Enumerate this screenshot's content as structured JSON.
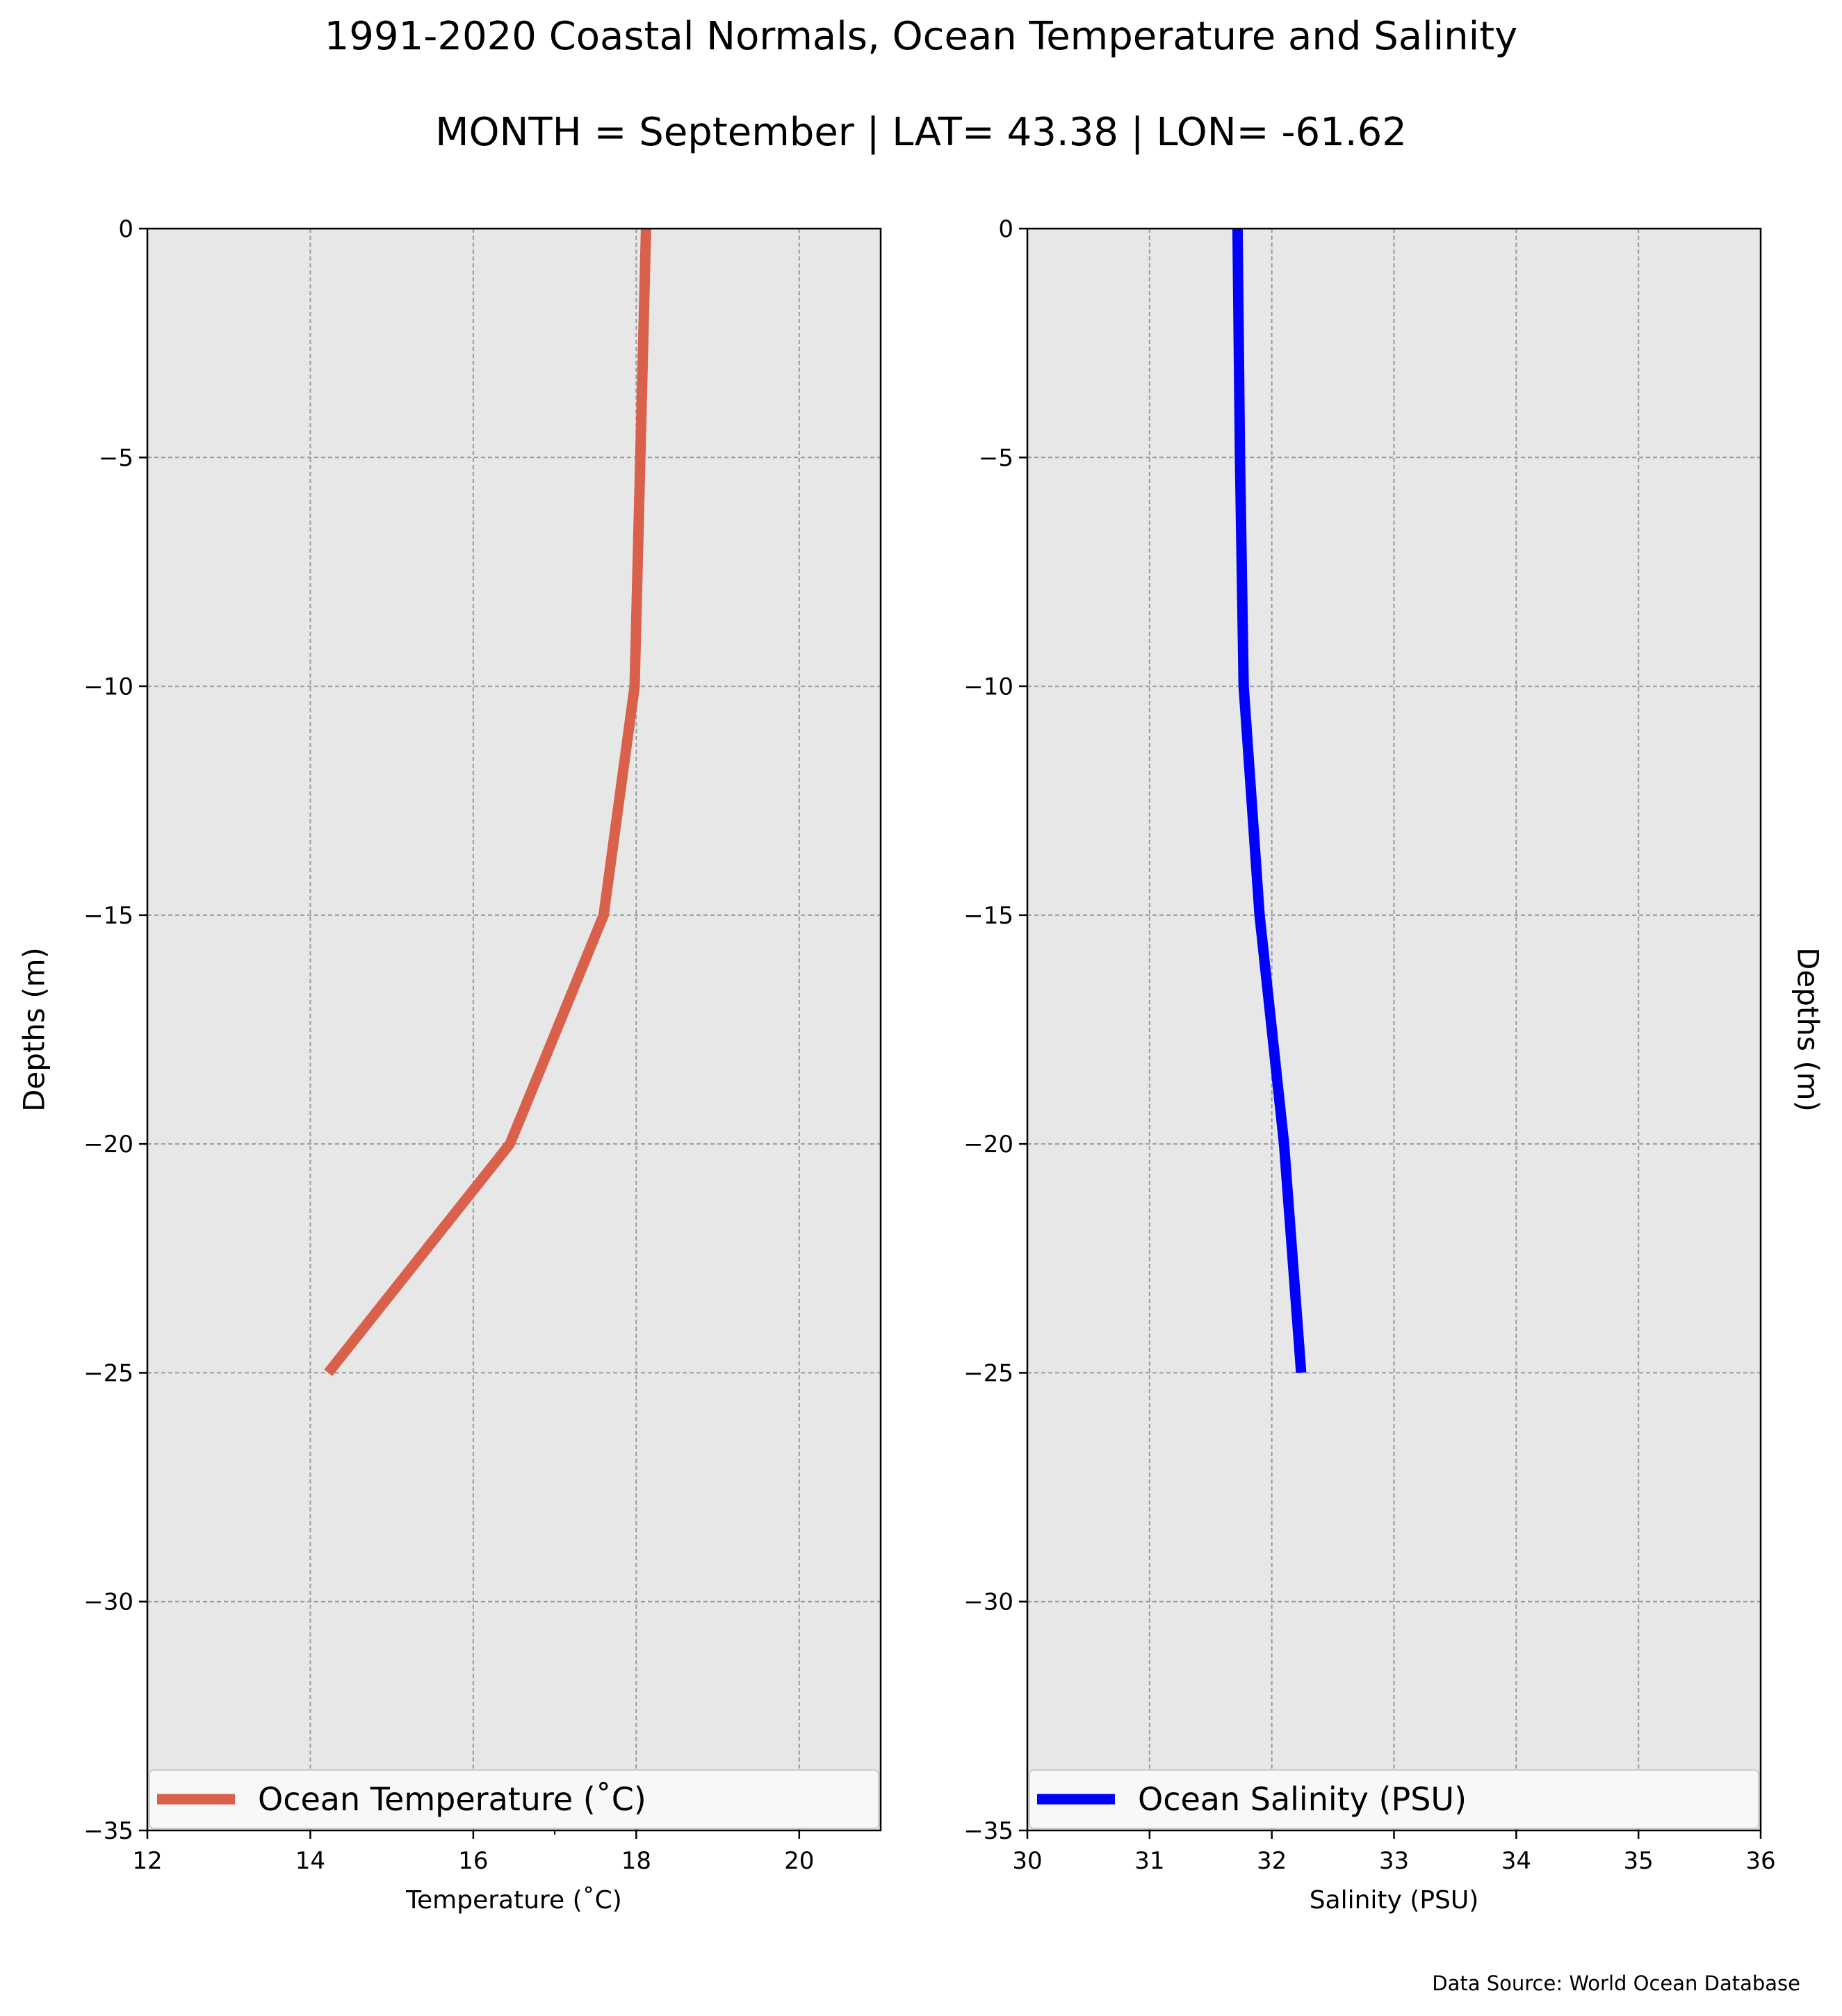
{
  "figure": {
    "title": "1991-2020 Coastal Normals, Ocean Temperature and Salinity",
    "subtitle": "MONTH = September | LAT= 43.38 | LON= -61.62",
    "source_note": "Data Source: World Ocean Database"
  },
  "chart_data": [
    {
      "type": "line",
      "xlabel": "Temperature ($^\\circ$C)",
      "xlabel_display": "Temperature (˚C)",
      "ylabel": "Depths (m)",
      "xlim": [
        12,
        21
      ],
      "ylim": [
        -35,
        0
      ],
      "xticks": [
        12,
        14,
        16,
        18,
        20
      ],
      "xtick_labels": [
        "12",
        "14",
        "16",
        "18",
        "20"
      ],
      "yticks": [
        0,
        -5,
        -10,
        -15,
        -20,
        -25,
        -30,
        -35
      ],
      "ytick_labels": [
        "0",
        "−5",
        "−10",
        "−15",
        "−20",
        "−25",
        "−30",
        "−35"
      ],
      "grid": true,
      "background": "#e7e7e7",
      "legend_position": "bottom",
      "series": [
        {
          "name": "Ocean Temperature (˚C)",
          "color": "#d9604b",
          "x": [
            18.12,
            18.05,
            17.98,
            17.6,
            16.45,
            14.22
          ],
          "y": [
            0,
            -5,
            -10,
            -15,
            -20,
            -25
          ]
        }
      ]
    },
    {
      "type": "line",
      "xlabel": "Salinity (PSU)",
      "ylabel": "Depths (m)",
      "xlim": [
        30,
        36
      ],
      "ylim": [
        -35,
        0
      ],
      "xticks": [
        30,
        31,
        32,
        33,
        34,
        35,
        36
      ],
      "xtick_labels": [
        "30",
        "31",
        "32",
        "33",
        "34",
        "35",
        "36"
      ],
      "yticks": [
        0,
        -5,
        -10,
        -15,
        -20,
        -25,
        -30,
        -35
      ],
      "ytick_labels": [
        "0",
        "−5",
        "−10",
        "−15",
        "−20",
        "−25",
        "−30",
        "−35"
      ],
      "ylabel_side": "right",
      "grid": true,
      "background": "#e7e7e7",
      "legend_position": "bottom",
      "series": [
        {
          "name": "Ocean Salinity (PSU)",
          "color": "#0000ff",
          "x": [
            31.72,
            31.74,
            31.77,
            31.9,
            32.1,
            32.24
          ],
          "y": [
            0,
            -5,
            -10,
            -15,
            -20,
            -25
          ]
        }
      ]
    }
  ]
}
